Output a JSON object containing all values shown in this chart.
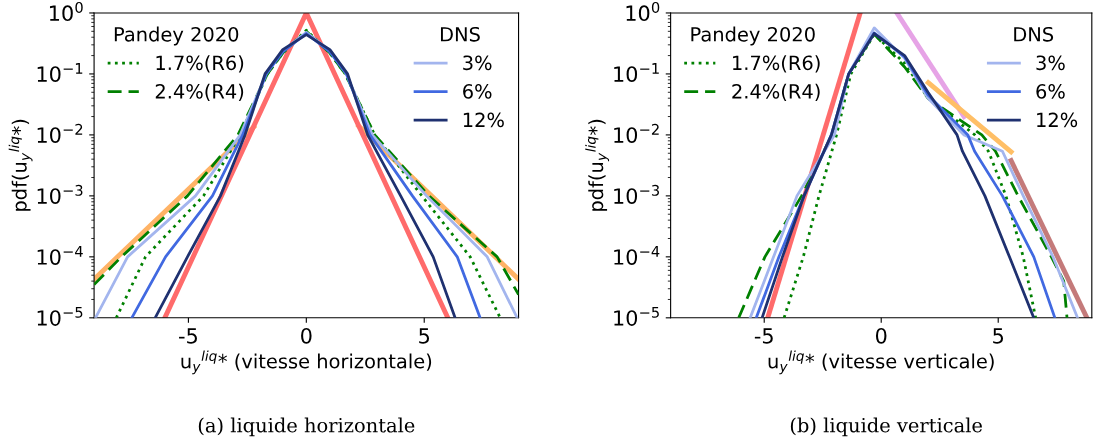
{
  "chart_data": [
    {
      "type": "line",
      "xlabel": "u$_{y}$$^{liq}$* (vitesse horizontale)",
      "ylabel": "pdf(u$_{y}$$^{liq}$*)",
      "log": "y",
      "xlim": [
        -9,
        9
      ],
      "xticks": [
        -5,
        0,
        5
      ],
      "ylim": [
        1e-05,
        1
      ],
      "yticks": [
        {
          "value": 1e-05,
          "label": "10$^{−5}$"
        },
        {
          "value": 0.0001,
          "label": "10$^{−4}$"
        },
        {
          "value": 0.001,
          "label": "10$^{−3}$"
        },
        {
          "value": 0.01,
          "label": "10$^{−2}$"
        },
        {
          "value": 0.1,
          "label": "10$^{−1}$"
        },
        {
          "value": 1,
          "label": "10$^{0}$"
        }
      ],
      "legend": [
        "top left",
        "top right"
      ],
      "legend_title": [
        "Pandey 2020",
        "DNS"
      ],
      "grid": false,
      "annotations": [
        "(a) liquide horizontale"
      ],
      "series": [
        {
          "color": "#ffb366",
          "x": [
            -9,
            -2.23,
            0,
            2.22,
            9
          ],
          "values": [
            4.3e-05,
            0.0135,
            null,
            0.014,
            4.3e-05
          ]
        },
        {
          "color": "#ff6b6b",
          "x": [
            -6,
            0,
            6
          ],
          "values": [
            1e-05,
            1,
            1e-05
          ]
        },
        {
          "name": "1.7%(R6)",
          "color": "#008000",
          "line_style": "dotted",
          "x": [
            -8.06,
            -6.82,
            -4.36,
            -2.8,
            -1.65,
            -1,
            0,
            1,
            1.65,
            2.9,
            4.9,
            6.95,
            8.22
          ],
          "values": [
            1e-05,
            0.0001,
            0.001,
            0.01,
            0.1,
            0.22,
            0.52,
            0.22,
            0.1,
            0.01,
            0.001,
            0.0001,
            1e-05
          ]
        },
        {
          "name": "2.4%(R4)",
          "color": "#008000",
          "line_style": "dashed",
          "x": [
            -9,
            -7.84,
            -5.04,
            -2.9,
            -1.65,
            -1,
            0,
            1,
            1.65,
            2.9,
            5.2,
            8.09,
            9
          ],
          "values": [
            3.5e-05,
            0.0001,
            0.001,
            0.01,
            0.1,
            0.22,
            0.5,
            0.22,
            0.1,
            0.01,
            0.001,
            0.0001,
            2.4e-05
          ]
        },
        {
          "name": "3%",
          "color": "#a3b5ee",
          "line_style": "solid",
          "x": [
            -8.94,
            -7.58,
            -4.7,
            -2.8,
            -1.7,
            -1,
            0,
            1,
            1.7,
            2.8,
            5.1,
            7.67,
            8.94
          ],
          "values": [
            1e-05,
            0.0001,
            0.001,
            0.01,
            0.1,
            0.24,
            0.48,
            0.24,
            0.1,
            0.01,
            0.001,
            0.0001,
            1e-05
          ]
        },
        {
          "name": "6%",
          "color": "#4169e1",
          "line_style": "solid",
          "x": [
            -7.4,
            -5.97,
            -3.98,
            -2.7,
            -1.7,
            -1,
            0,
            1,
            1.7,
            2.7,
            4.5,
            6.4,
            7.37
          ],
          "values": [
            1e-05,
            0.0001,
            0.001,
            0.01,
            0.1,
            0.23,
            0.46,
            0.23,
            0.1,
            0.01,
            0.001,
            0.0001,
            1e-05
          ]
        },
        {
          "name": "12%",
          "color": "#1f3170",
          "line_style": "solid",
          "x": [
            -6.41,
            -5.04,
            -3.64,
            -2.6,
            -1.75,
            -1,
            0,
            1,
            1.75,
            2.6,
            4.0,
            5.38,
            6.31
          ],
          "values": [
            1e-05,
            0.0001,
            0.001,
            0.01,
            0.1,
            0.25,
            0.44,
            0.25,
            0.1,
            0.01,
            0.001,
            0.0001,
            1e-05
          ]
        }
      ]
    },
    {
      "type": "line",
      "xlabel": "u$_{y}$$^{liq}$* (vitesse verticale)",
      "ylabel": "pdf(u$_{y}$$^{liq}$*)",
      "log": "y",
      "xlim": [
        -9,
        9
      ],
      "xticks": [
        -5,
        0,
        5
      ],
      "ylim": [
        1e-05,
        1
      ],
      "yticks": [
        {
          "value": 1e-05,
          "label": "10$^{−5}$"
        },
        {
          "value": 0.0001,
          "label": "10$^{−4}$"
        },
        {
          "value": 0.001,
          "label": "10$^{−3}$"
        },
        {
          "value": 0.01,
          "label": "10$^{−2}$"
        },
        {
          "value": 0.1,
          "label": "10$^{−1}$"
        },
        {
          "value": 1,
          "label": "10$^{0}$"
        }
      ],
      "legend": [
        "top left",
        "top right"
      ],
      "legend_title": [
        "Pandey 2020",
        "DNS"
      ],
      "grid": false,
      "annotations": [
        "(b) liquide verticale"
      ],
      "series": [
        {
          "color": "#ff6b6b",
          "x": [
            -4.85,
            -0.9
          ],
          "values": [
            1e-05,
            1
          ]
        },
        {
          "color": "#e6a3e6",
          "x": [
            0.67,
            3.54
          ],
          "values": [
            1,
            0.02
          ]
        },
        {
          "color": "#ffbf66",
          "x": [
            2.01,
            5.55
          ],
          "values": [
            0.072,
            0.0053
          ]
        },
        {
          "color": "#c47a7a",
          "x": [
            5.55,
            8.79
          ],
          "values": [
            0.0038,
            1e-05
          ]
        },
        {
          "name": "1.7%(R6)",
          "color": "#008000",
          "line_style": "dotted",
          "x": [
            -4.15,
            -3.33,
            -2.66,
            -1.91,
            -1.3,
            -0.3,
            1,
            2,
            4.0,
            4.58,
            5.33,
            6.07,
            6.6
          ],
          "values": [
            1e-05,
            0.0001,
            0.001,
            0.01,
            0.1,
            0.45,
            0.15,
            0.04,
            0.01,
            0.0054,
            0.001,
            0.0001,
            1e-05
          ]
        },
        {
          "name": "2.4%(R4)",
          "color": "#008000",
          "line_style": "dashed",
          "x": [
            -6.09,
            -4.97,
            -3.4,
            -2.1,
            -1.39,
            -0.3,
            1,
            2,
            4.3,
            4.88,
            5.85,
            7.27,
            7.8,
            7.94
          ],
          "values": [
            1e-05,
            0.0001,
            0.001,
            0.01,
            0.1,
            0.45,
            0.13,
            0.04,
            0.01,
            0.0054,
            0.001,
            0.0001,
            4e-05,
            1e-05
          ]
        },
        {
          "name": "3%",
          "color": "#a3b5ee",
          "line_style": "solid",
          "x": [
            -5.6,
            -4.6,
            -3.6,
            -2.0,
            -1.39,
            -0.3,
            1,
            2,
            3.54,
            5.18,
            6.07,
            7.34,
            8.39
          ],
          "values": [
            1e-05,
            0.0001,
            0.001,
            0.01,
            0.1,
            0.57,
            0.18,
            0.04,
            0.01,
            0.0054,
            0.001,
            0.0001,
            1e-05
          ]
        },
        {
          "name": "6%",
          "color": "#4169e1",
          "line_style": "solid",
          "x": [
            -5.34,
            -4.37,
            -3.3,
            -2.13,
            -1.39,
            -0.3,
            1,
            2,
            3.7,
            3.99,
            5.18,
            6.52,
            7.42
          ],
          "values": [
            1e-05,
            0.0001,
            0.001,
            0.01,
            0.1,
            0.47,
            0.19,
            0.045,
            0.01,
            0.0054,
            0.001,
            0.0001,
            1e-05
          ]
        },
        {
          "name": "12%",
          "color": "#1f3170",
          "line_style": "solid",
          "x": [
            -5.09,
            -4.22,
            -3.3,
            -2.13,
            -1.39,
            -0.3,
            1,
            2,
            3.24,
            3.47,
            4.43,
            5.48,
            6.52
          ],
          "values": [
            1e-05,
            0.0001,
            0.001,
            0.01,
            0.1,
            0.46,
            0.2,
            0.05,
            0.01,
            0.0054,
            0.001,
            0.0001,
            1e-05
          ]
        }
      ]
    }
  ]
}
